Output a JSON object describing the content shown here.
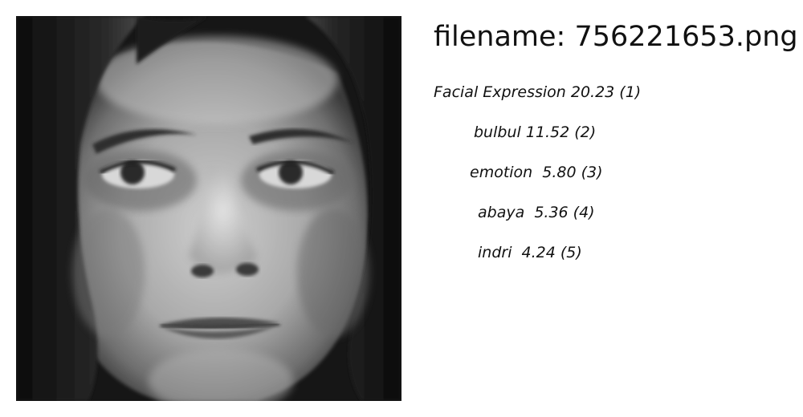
{
  "header": {
    "filename_text": "filename: 756221653.png"
  },
  "image": {
    "alt": "grayscale close-up face photo"
  },
  "predictions": [
    {
      "label": "Facial Expression",
      "score": "20.23",
      "rank": "(1)",
      "text": "Facial Expression 20.23 (1)"
    },
    {
      "label": "bulbul",
      "score": "11.52",
      "rank": "(2)",
      "text": "bulbul 11.52 (2)"
    },
    {
      "label": "emotion",
      "score": "5.80",
      "rank": "(3)",
      "text": "emotion  5.80 (3)"
    },
    {
      "label": "abaya",
      "score": "5.36",
      "rank": "(4)",
      "text": "abaya  5.36 (4)"
    },
    {
      "label": "indri",
      "score": "4.24",
      "rank": "(5)",
      "text": "indri  4.24 (5)"
    }
  ]
}
